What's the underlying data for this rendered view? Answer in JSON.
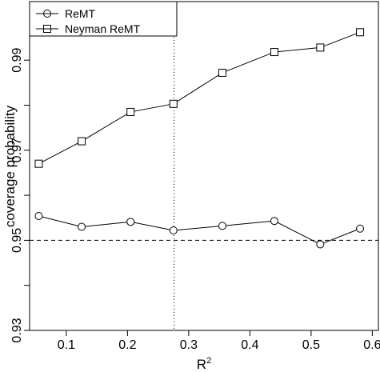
{
  "chart_data": {
    "type": "line",
    "xlabel": "R",
    "xlabel_superscript": "2",
    "ylabel": "coverage probability",
    "xlim": [
      0.04,
      0.61
    ],
    "ylim": [
      0.93,
      1.003
    ],
    "x_ticks": [
      0.1,
      0.2,
      0.3,
      0.4,
      0.5,
      0.6
    ],
    "x_tick_labels": [
      "0.1",
      "0.2",
      "0.3",
      "0.4",
      "0.5",
      "0.6"
    ],
    "y_ticks": [
      0.93,
      0.95,
      0.97,
      0.99
    ],
    "y_tick_labels": [
      "0.93",
      "0.95",
      "0.97",
      "0.99"
    ],
    "y_minor_ticks": [
      0.94,
      0.96,
      0.98
    ],
    "reference_lines": [
      {
        "orientation": "horizontal",
        "value": 0.95,
        "style": "dashed"
      },
      {
        "orientation": "vertical",
        "value": 0.276,
        "style": "dotted"
      }
    ],
    "legend_position": "top-left",
    "series": [
      {
        "name": "ReMT",
        "marker": "circle",
        "x": [
          0.055,
          0.125,
          0.205,
          0.275,
          0.355,
          0.44,
          0.515,
          0.58
        ],
        "y": [
          0.9554,
          0.953,
          0.9541,
          0.9522,
          0.9532,
          0.9543,
          0.9491,
          0.9526
        ]
      },
      {
        "name": "Neyman ReMT",
        "marker": "square",
        "x": [
          0.055,
          0.125,
          0.205,
          0.275,
          0.355,
          0.44,
          0.515,
          0.58
        ],
        "y": [
          0.967,
          0.972,
          0.9785,
          0.9803,
          0.9872,
          0.9918,
          0.9928,
          0.9962
        ]
      }
    ]
  }
}
